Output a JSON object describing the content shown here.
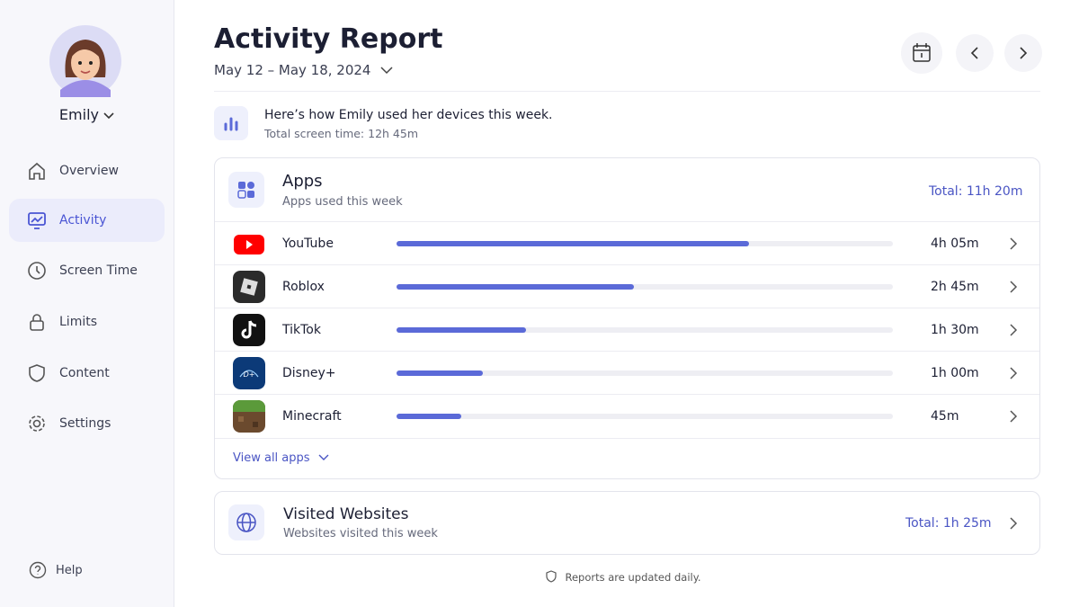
{
  "sidebar": {
    "profile_name": "Emily",
    "nav": [
      "Overview",
      "Activity",
      "Screen Time",
      "Limits",
      "Content",
      "Settings"
    ],
    "active": "Activity",
    "help": "Help"
  },
  "header": {
    "title": "Activity Report",
    "date_range": "May 12 – May 18, 2024"
  },
  "summary": {
    "text": "Here’s how Emily used her devices this week.",
    "total": "Total screen time: 12h 45m"
  },
  "apps": {
    "title": "Apps",
    "subtitle": "Apps used this week",
    "total": "Total: 11h 20m",
    "items": [
      {
        "name": "YouTube",
        "time": "4h 05m",
        "minutes": 245
      },
      {
        "name": "Roblox",
        "time": "2h 45m",
        "minutes": 165
      },
      {
        "name": "TikTok",
        "time": "1h 30m",
        "minutes": 90
      },
      {
        "name": "Disney+",
        "time": "1h 00m",
        "minutes": 60
      },
      {
        "name": "Minecraft",
        "time": "45m",
        "minutes": 45
      }
    ],
    "view_all": "View all apps"
  },
  "websites": {
    "title": "Visited Websites",
    "subtitle": "Websites visited this week",
    "total": "Total: 1h 25m"
  },
  "footer": "Reports are updated daily."
}
